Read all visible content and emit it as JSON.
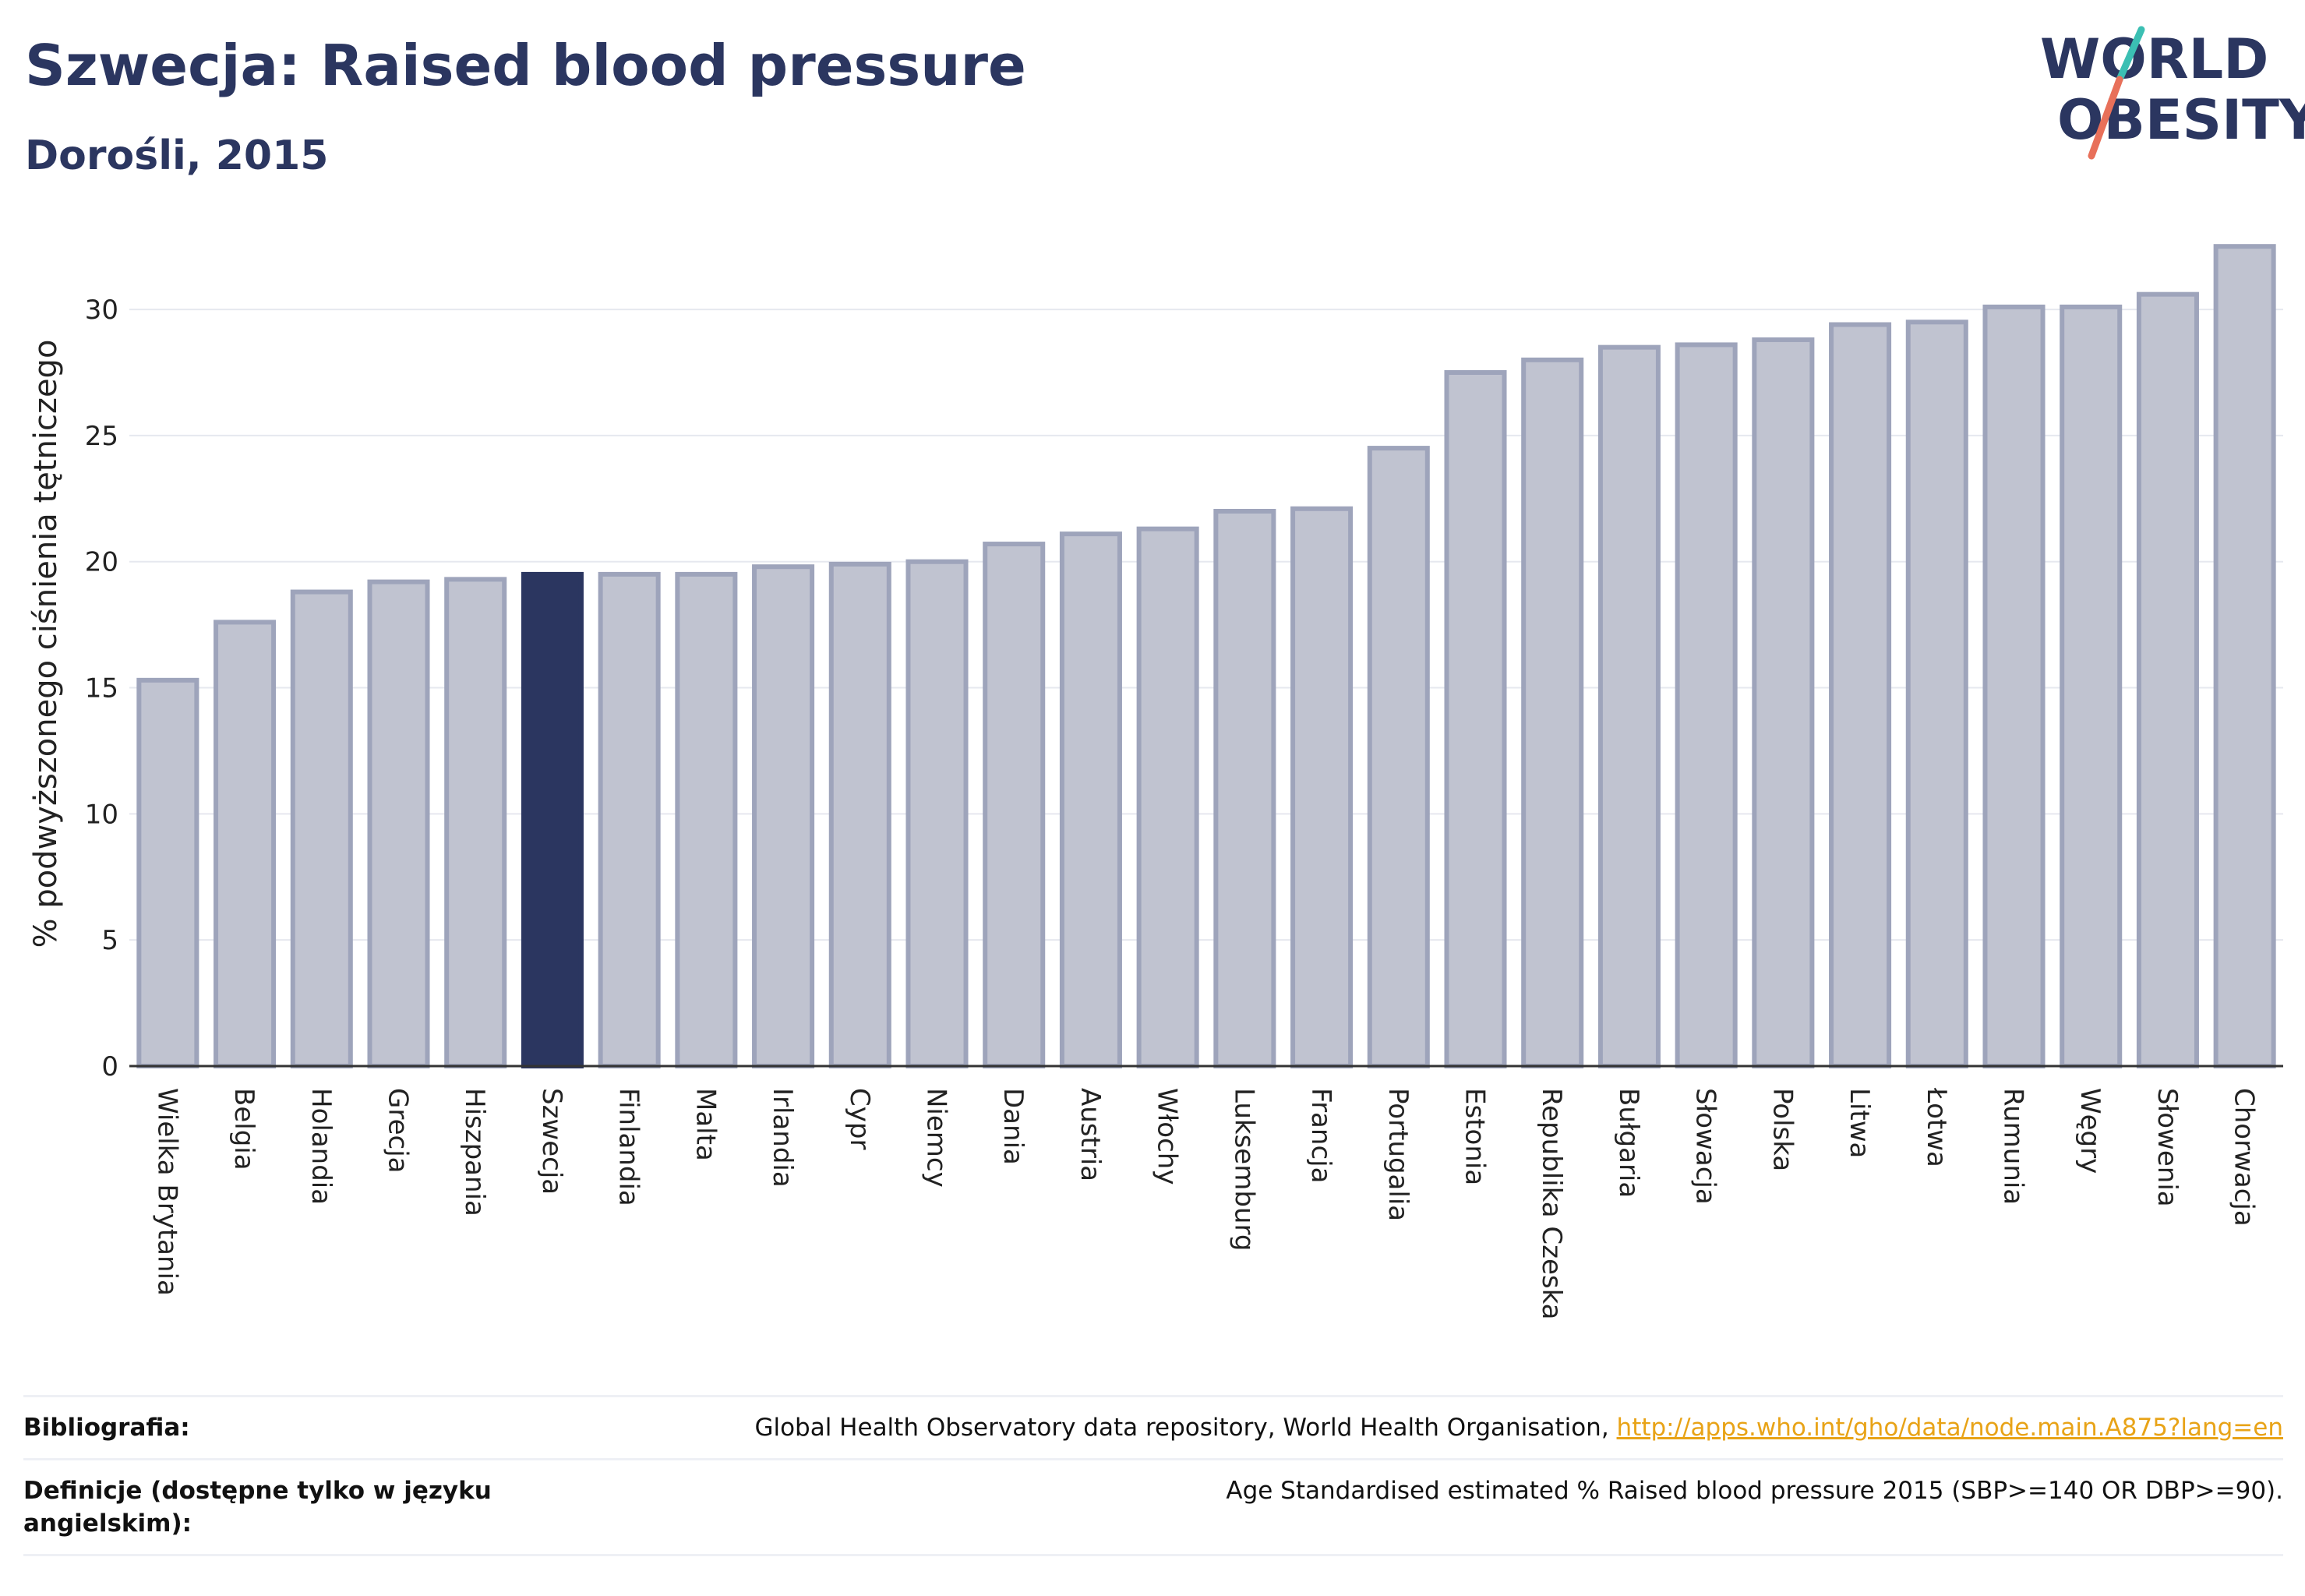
{
  "header": {
    "title": "Szwecja: Raised blood pressure",
    "subtitle": "Dorośli, 2015"
  },
  "logo": {
    "line1": "WORLD",
    "line2": "OBESITY",
    "color_text": "#2b3660",
    "color_teal": "#3bbfb3",
    "color_coral": "#e8705a"
  },
  "colors": {
    "bar_default": "#c0c3d0",
    "bar_default_border": "#9ea4bb",
    "bar_highlight": "#2b3660",
    "grid": "#e6e8ef",
    "axis_text": "#222222"
  },
  "chart_data": {
    "type": "bar",
    "title": "Szwecja: Raised blood pressure",
    "subtitle": "Dorośli, 2015",
    "xlabel": "",
    "ylabel": "% podwyższonego ciśnienia tętniczego",
    "ylim": [
      0,
      33
    ],
    "yticks": [
      0,
      5,
      10,
      15,
      20,
      25,
      30
    ],
    "grid": "horizontal",
    "highlight": "Szwecja",
    "categories": [
      "Wielka Brytania",
      "Belgia",
      "Holandia",
      "Grecja",
      "Hiszpania",
      "Szwecja",
      "Finlandia",
      "Malta",
      "Irlandia",
      "Cypr",
      "Niemcy",
      "Dania",
      "Austria",
      "Włochy",
      "Luksemburg",
      "Francja",
      "Portugalia",
      "Estonia",
      "Republika Czeska",
      "Bułgaria",
      "Słowacja",
      "Polska",
      "Litwa",
      "Łotwa",
      "Rumunia",
      "Węgry",
      "Słowenia",
      "Chorwacja"
    ],
    "values": [
      15.3,
      17.6,
      18.8,
      19.2,
      19.3,
      19.5,
      19.5,
      19.5,
      19.8,
      19.9,
      20.0,
      20.7,
      21.1,
      21.3,
      22.0,
      22.1,
      24.5,
      27.5,
      28.0,
      28.5,
      28.6,
      28.8,
      29.4,
      29.5,
      30.1,
      30.1,
      30.6,
      32.5
    ]
  },
  "footer": {
    "bibliography_label": "Bibliografia:",
    "bibliography_text": "Global Health Observatory data repository, World Health Organisation, ",
    "bibliography_link": "http://apps.who.int/gho/data/node.main.A875?lang=en",
    "definition_label": "Definicje (dostępne tylko w języku angielskim):",
    "definition_text": "Age Standardised estimated % Raised blood pressure 2015 (SBP>=140 OR DBP>=90)."
  }
}
